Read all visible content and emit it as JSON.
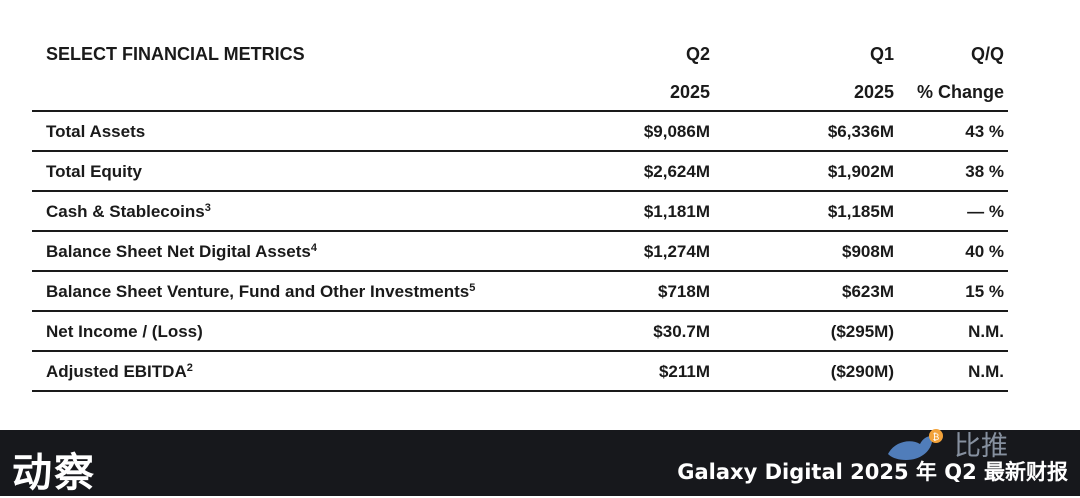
{
  "table": {
    "title": "SELECT FINANCIAL METRICS",
    "columns": [
      {
        "line1": "Q2",
        "line2": "2025"
      },
      {
        "line1": "Q1",
        "line2": "2025"
      },
      {
        "line1": "Q/Q",
        "line2": "% Change"
      }
    ],
    "rows": [
      {
        "label": "Total Assets",
        "note": "",
        "q2": "$9,086M",
        "q1": "$6,336M",
        "change": "43 %"
      },
      {
        "label": "Total Equity",
        "note": "",
        "q2": "$2,624M",
        "q1": "$1,902M",
        "change": "38 %"
      },
      {
        "label": "Cash & Stablecoins",
        "note": "3",
        "q2": "$1,181M",
        "q1": "$1,185M",
        "change": "— %"
      },
      {
        "label": "Balance Sheet Net Digital Assets",
        "note": "4",
        "q2": "$1,274M",
        "q1": "$908M",
        "change": "40 %"
      },
      {
        "label": "Balance Sheet Venture, Fund and Other Investments",
        "note": "5",
        "q2": "$718M",
        "q1": "$623M",
        "change": "15 %"
      },
      {
        "label": "Net Income / (Loss)",
        "note": "",
        "q2": "$30.7M",
        "q1": "($295M)",
        "change": "N.M."
      },
      {
        "label": "Adjusted EBITDA",
        "note": "2",
        "q2": "$211M",
        "q1": "($290M)",
        "change": "N.M."
      }
    ]
  },
  "footer": {
    "logo_text": "动察",
    "title": "Galaxy Digital 2025 年 Q2 最新财报",
    "watermark_text": "比推",
    "watermark_colors": {
      "bird": "#5b8fd6",
      "coin": "#f2a23a"
    }
  }
}
